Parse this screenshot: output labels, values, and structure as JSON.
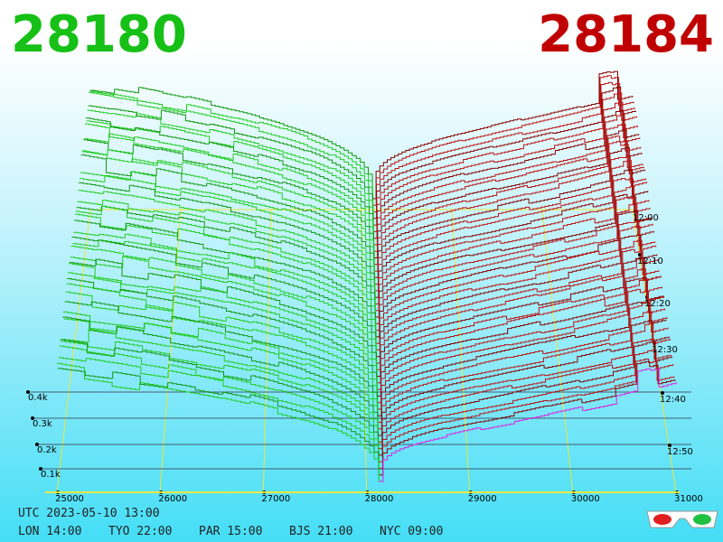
{
  "header": {
    "bid": "28180",
    "ask": "28184"
  },
  "price_axis": [
    "25000",
    "26000",
    "27000",
    "28000",
    "29000",
    "30000",
    "31000"
  ],
  "volume_axis": [
    "0.4k",
    "0.3k",
    "0.2k",
    "0.1k"
  ],
  "time_axis": [
    "12:00",
    "12:10",
    "12:20",
    "12:30",
    "12:40",
    "12:50"
  ],
  "footer": {
    "utc": "UTC 2023-05-10 13:00",
    "cities": [
      "LON 14:00",
      "TYO 22:00",
      "PAR 15:00",
      "BJS 21:00",
      "NYC 09:00"
    ]
  }
}
